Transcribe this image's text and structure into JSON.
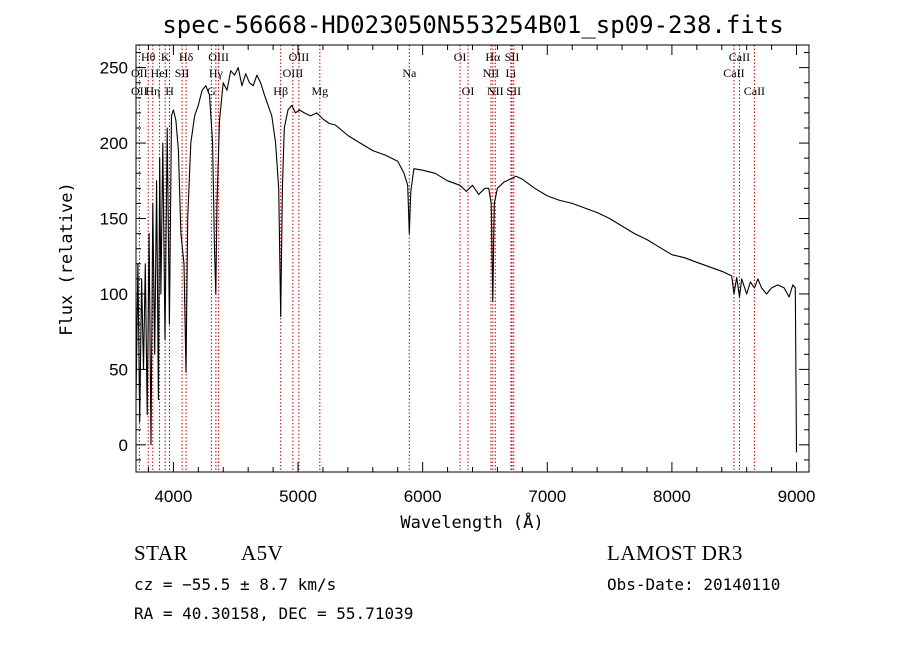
{
  "chart_data": {
    "type": "line",
    "title": "spec-56668-HD023050N553254B01_sp09-238.fits",
    "xlabel": "Wavelength (Å)",
    "ylabel": "Flux (relative)",
    "xlim": [
      3700,
      9100
    ],
    "ylim": [
      -18,
      265
    ],
    "xticks": [
      4000,
      5000,
      6000,
      7000,
      8000,
      9000
    ],
    "xtick_labels": [
      "4000",
      "5000",
      "6000",
      "7000",
      "8000",
      "9000"
    ],
    "yticks": [
      0,
      50,
      100,
      150,
      200,
      250
    ],
    "ytick_labels": [
      "0",
      "50",
      "100",
      "150",
      "200",
      "250"
    ],
    "series": [
      {
        "name": "spectrum",
        "x": [
          3700,
          3715,
          3730,
          3745,
          3760,
          3775,
          3790,
          3805,
          3820,
          3835,
          3850,
          3865,
          3880,
          3890,
          3900,
          3915,
          3933,
          3950,
          3968,
          3985,
          4000,
          4020,
          4040,
          4060,
          4085,
          4101,
          4115,
          4140,
          4170,
          4200,
          4230,
          4260,
          4290,
          4315,
          4330,
          4340,
          4350,
          4370,
          4400,
          4430,
          4460,
          4490,
          4520,
          4550,
          4580,
          4610,
          4640,
          4670,
          4700,
          4730,
          4760,
          4790,
          4820,
          4845,
          4861,
          4875,
          4890,
          4920,
          4950,
          4980,
          5010,
          5050,
          5100,
          5150,
          5200,
          5250,
          5300,
          5400,
          5500,
          5600,
          5700,
          5800,
          5850,
          5880,
          5893,
          5905,
          5930,
          6000,
          6100,
          6200,
          6300,
          6350,
          6400,
          6450,
          6500,
          6530,
          6550,
          6563,
          6575,
          6600,
          6650,
          6700,
          6750,
          6800,
          6900,
          7000,
          7100,
          7200,
          7300,
          7400,
          7500,
          7600,
          7700,
          7800,
          7900,
          8000,
          8100,
          8200,
          8300,
          8400,
          8480,
          8498,
          8520,
          8542,
          8560,
          8600,
          8630,
          8662,
          8690,
          8720,
          8760,
          8800,
          8850,
          8900,
          8940,
          8970,
          8990,
          9000
        ],
        "y": [
          30,
          120,
          15,
          110,
          50,
          120,
          20,
          140,
          0,
          160,
          60,
          175,
          30,
          190,
          100,
          200,
          70,
          210,
          80,
          218,
          222,
          215,
          195,
          140,
          120,
          48,
          150,
          200,
          218,
          225,
          235,
          238,
          232,
          200,
          130,
          100,
          160,
          215,
          240,
          235,
          248,
          245,
          250,
          238,
          246,
          240,
          238,
          245,
          240,
          232,
          225,
          218,
          200,
          170,
          85,
          170,
          210,
          222,
          225,
          220,
          222,
          220,
          218,
          220,
          216,
          213,
          212,
          205,
          200,
          195,
          192,
          188,
          180,
          172,
          140,
          168,
          183,
          182,
          180,
          175,
          172,
          168,
          172,
          166,
          170,
          170,
          160,
          95,
          160,
          170,
          174,
          176,
          178,
          176,
          170,
          165,
          162,
          160,
          157,
          154,
          150,
          145,
          140,
          136,
          131,
          126,
          124,
          121,
          118,
          115,
          112,
          100,
          111,
          98,
          110,
          100,
          108,
          104,
          110,
          104,
          100,
          104,
          106,
          104,
          98,
          106,
          104,
          -5
        ]
      }
    ],
    "line_markers": [
      {
        "label": "Hθ",
        "x": 3798,
        "row": 1
      },
      {
        "label": "OII",
        "x": 3727,
        "row": 2
      },
      {
        "label": "OII",
        "x": 3727,
        "row": 3
      },
      {
        "label": "Hη",
        "x": 3835,
        "row": 3
      },
      {
        "label": "K",
        "x": 3934,
        "row": 1
      },
      {
        "label": "HeI",
        "x": 3889,
        "row": 2
      },
      {
        "label": "H",
        "x": 3969,
        "row": 3
      },
      {
        "label": "Hδ",
        "x": 4102,
        "row": 1
      },
      {
        "label": "SII",
        "x": 4070,
        "row": 2
      },
      {
        "label": "OIII",
        "x": 4363,
        "row": 1
      },
      {
        "label": "Hγ",
        "x": 4341,
        "row": 2
      },
      {
        "label": "G",
        "x": 4305,
        "row": 3
      },
      {
        "label": "OIII",
        "x": 5007,
        "row": 1
      },
      {
        "label": "OIII",
        "x": 4959,
        "row": 2
      },
      {
        "label": "Hβ",
        "x": 4861,
        "row": 3
      },
      {
        "label": "Mg",
        "x": 5175,
        "row": 3
      },
      {
        "label": "Na",
        "x": 5893,
        "row": 2
      },
      {
        "label": "OI",
        "x": 6300,
        "row": 1
      },
      {
        "label": "OI",
        "x": 6364,
        "row": 3
      },
      {
        "label": "Hα",
        "x": 6563,
        "row": 1
      },
      {
        "label": "SII",
        "x": 6717,
        "row": 1
      },
      {
        "label": "NII",
        "x": 6548,
        "row": 2
      },
      {
        "label": "Li",
        "x": 6708,
        "row": 2
      },
      {
        "label": "NII",
        "x": 6583,
        "row": 3
      },
      {
        "label": "SII",
        "x": 6731,
        "row": 3
      },
      {
        "label": "CaII",
        "x": 8542,
        "row": 1
      },
      {
        "label": "CaII",
        "x": 8498,
        "row": 2
      },
      {
        "label": "CaII",
        "x": 8662,
        "row": 3
      }
    ]
  },
  "info": {
    "object_type": "STAR",
    "spectral_class": "A5V",
    "survey": "LAMOST DR3",
    "velocity": "cz = −55.5 ± 8.7 km/s",
    "obs_date": "Obs-Date: 20140110",
    "coords": "RA =  40.30158, DEC =  55.71039"
  },
  "colors": {
    "line": "#000000",
    "marker": "#c00000",
    "background": "#ffffff"
  }
}
